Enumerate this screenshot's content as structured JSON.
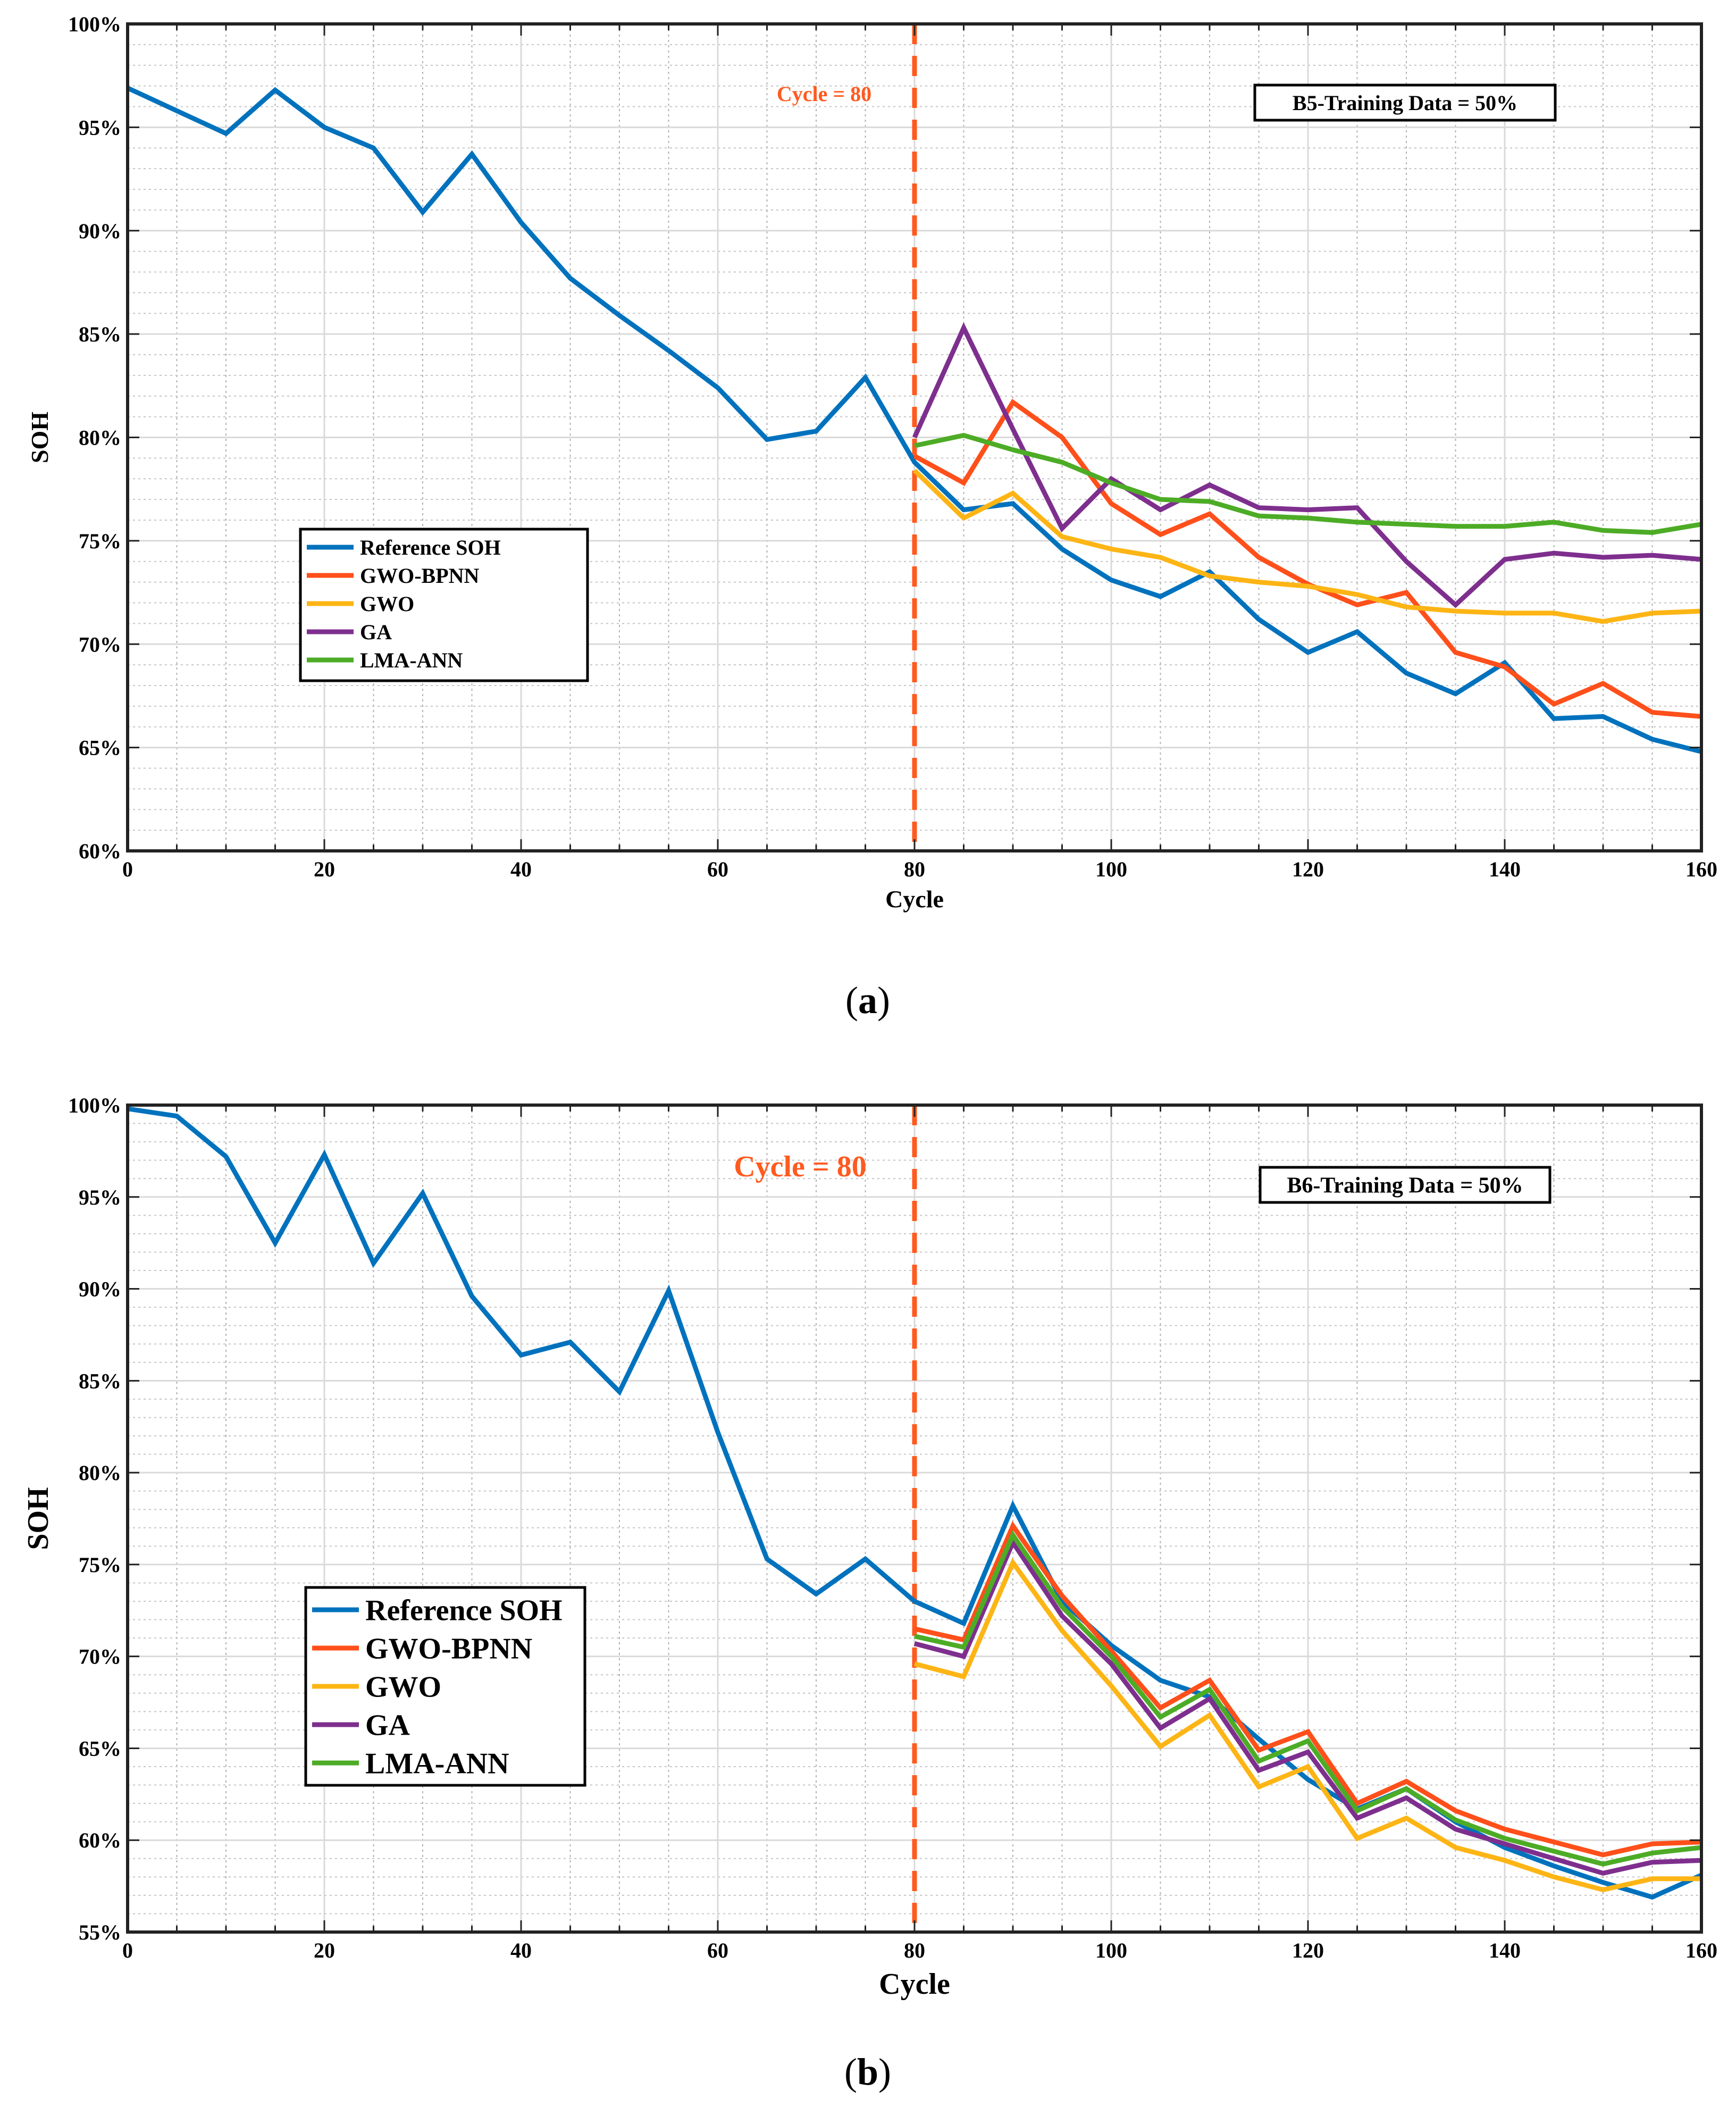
{
  "colors": {
    "reference": "#0072BD",
    "gwo_bpnn": "#FF4F1A",
    "gwo": "#FDB515",
    "ga": "#7E2F8E",
    "lma_ann": "#4DAC26",
    "marker_line": "#FF5A1F"
  },
  "chart_data": [
    {
      "type": "line",
      "panel_caption": "(a)",
      "caption_letter": "a",
      "xlabel": "Cycle",
      "ylabel": "SOH",
      "xlim": [
        0,
        160
      ],
      "ylim": [
        60,
        100
      ],
      "x_ticks": [
        "0",
        "20",
        "40",
        "60",
        "80",
        "100",
        "120",
        "140",
        "160"
      ],
      "y_ticks": [
        "60%",
        "65%",
        "70%",
        "75%",
        "80%",
        "85%",
        "90%",
        "95%",
        "100%"
      ],
      "grid": true,
      "legend_placement": "center-left",
      "annotation": "Cycle = 80",
      "vline_x": 80,
      "textbox": "B5-Training Data = 50%",
      "series": [
        {
          "name": "Reference SOH",
          "color_key": "reference",
          "x": [
            0,
            5,
            10,
            15,
            20,
            25,
            30,
            35,
            40,
            45,
            50,
            55,
            60,
            65,
            70,
            75,
            80,
            85,
            90,
            95,
            100,
            105,
            110,
            115,
            120,
            125,
            130,
            135,
            140,
            145,
            150,
            155,
            160
          ],
          "values": [
            96.9,
            95.8,
            94.7,
            96.8,
            95.0,
            94.0,
            90.9,
            93.7,
            90.4,
            87.7,
            85.9,
            84.2,
            82.4,
            79.9,
            80.3,
            82.9,
            78.8,
            76.5,
            76.8,
            74.6,
            73.1,
            72.3,
            73.5,
            71.2,
            69.6,
            70.6,
            68.6,
            67.6,
            69.1,
            66.4,
            66.5,
            65.4,
            64.8
          ]
        },
        {
          "name": "GWO-BPNN",
          "color_key": "gwo_bpnn",
          "x": [
            80,
            85,
            90,
            95,
            100,
            105,
            110,
            115,
            120,
            125,
            130,
            135,
            140,
            145,
            150,
            155,
            160
          ],
          "values": [
            79.1,
            77.8,
            81.7,
            80.0,
            76.8,
            75.3,
            76.3,
            74.2,
            72.9,
            71.9,
            72.5,
            69.6,
            68.9,
            67.1,
            68.1,
            66.7,
            66.5
          ]
        },
        {
          "name": "GWO",
          "color_key": "gwo",
          "x": [
            80,
            85,
            90,
            95,
            100,
            105,
            110,
            115,
            120,
            125,
            130,
            135,
            140,
            145,
            150,
            155,
            160
          ],
          "values": [
            78.4,
            76.1,
            77.3,
            75.2,
            74.6,
            74.2,
            73.3,
            73.0,
            72.8,
            72.4,
            71.8,
            71.6,
            71.5,
            71.5,
            71.1,
            71.5,
            71.6
          ]
        },
        {
          "name": "GA",
          "color_key": "ga",
          "x": [
            80,
            85,
            90,
            95,
            100,
            105,
            110,
            115,
            120,
            125,
            130,
            135,
            140,
            145,
            150,
            155,
            160
          ],
          "values": [
            80.0,
            85.3,
            80.4,
            75.6,
            78.0,
            76.5,
            77.7,
            76.6,
            76.5,
            76.6,
            74.0,
            71.9,
            74.1,
            74.4,
            74.2,
            74.3,
            74.1
          ]
        },
        {
          "name": "LMA-ANN",
          "color_key": "lma_ann",
          "x": [
            80,
            85,
            90,
            95,
            100,
            105,
            110,
            115,
            120,
            125,
            130,
            135,
            140,
            145,
            150,
            155,
            160
          ],
          "values": [
            79.6,
            80.1,
            79.4,
            78.8,
            77.8,
            77.0,
            76.9,
            76.2,
            76.1,
            75.9,
            75.8,
            75.7,
            75.7,
            75.9,
            75.5,
            75.4,
            75.8
          ]
        }
      ]
    },
    {
      "type": "line",
      "panel_caption": "(b)",
      "caption_letter": "b",
      "xlabel": "Cycle",
      "ylabel": "SOH",
      "xlim": [
        0,
        160
      ],
      "ylim": [
        55,
        100
      ],
      "x_ticks": [
        "0",
        "20",
        "40",
        "60",
        "80",
        "100",
        "120",
        "140",
        "160"
      ],
      "y_ticks": [
        "55%",
        "60%",
        "65%",
        "70%",
        "75%",
        "80%",
        "85%",
        "90%",
        "95%",
        "100%"
      ],
      "grid": true,
      "legend_placement": "lower-left",
      "annotation": "Cycle = 80",
      "vline_x": 80,
      "textbox": "B6-Training Data = 50%",
      "series": [
        {
          "name": "Reference SOH",
          "color_key": "reference",
          "x": [
            0,
            5,
            10,
            15,
            20,
            25,
            30,
            35,
            40,
            45,
            50,
            55,
            60,
            65,
            70,
            75,
            80,
            85,
            90,
            95,
            100,
            105,
            110,
            115,
            120,
            125,
            130,
            135,
            140,
            145,
            150,
            155,
            160
          ],
          "values": [
            99.8,
            99.4,
            97.2,
            92.5,
            97.3,
            91.4,
            95.2,
            89.6,
            86.4,
            87.1,
            84.4,
            89.9,
            82.2,
            75.3,
            73.4,
            75.3,
            73.0,
            71.8,
            78.2,
            73.0,
            70.6,
            68.7,
            67.8,
            65.5,
            63.3,
            61.7,
            62.8,
            61.0,
            59.6,
            58.6,
            57.7,
            56.9,
            58.1
          ]
        },
        {
          "name": "GWO-BPNN",
          "color_key": "gwo_bpnn",
          "x": [
            80,
            85,
            90,
            95,
            100,
            105,
            110,
            115,
            120,
            125,
            130,
            135,
            140,
            145,
            150,
            155,
            160
          ],
          "values": [
            71.5,
            70.9,
            77.1,
            73.3,
            70.3,
            67.2,
            68.7,
            64.9,
            65.9,
            62.0,
            63.2,
            61.6,
            60.6,
            59.9,
            59.2,
            59.8,
            59.9
          ]
        },
        {
          "name": "GWO",
          "color_key": "gwo",
          "x": [
            80,
            85,
            90,
            95,
            100,
            105,
            110,
            115,
            120,
            125,
            130,
            135,
            140,
            145,
            150,
            155,
            160
          ],
          "values": [
            69.6,
            68.9,
            75.1,
            71.4,
            68.4,
            65.1,
            66.8,
            62.9,
            64.0,
            60.1,
            61.2,
            59.6,
            58.9,
            58.0,
            57.3,
            57.9,
            57.9
          ]
        },
        {
          "name": "GA",
          "color_key": "ga",
          "x": [
            80,
            85,
            90,
            95,
            100,
            105,
            110,
            115,
            120,
            125,
            130,
            135,
            140,
            145,
            150,
            155,
            160
          ],
          "values": [
            70.7,
            70.0,
            76.2,
            72.2,
            69.6,
            66.1,
            67.7,
            63.8,
            64.8,
            61.2,
            62.3,
            60.6,
            59.8,
            59.0,
            58.2,
            58.8,
            58.9
          ]
        },
        {
          "name": "LMA-ANN",
          "color_key": "lma_ann",
          "x": [
            80,
            85,
            90,
            95,
            100,
            105,
            110,
            115,
            120,
            125,
            130,
            135,
            140,
            145,
            150,
            155,
            160
          ],
          "values": [
            71.1,
            70.5,
            76.6,
            72.7,
            70.0,
            66.7,
            68.2,
            64.3,
            65.4,
            61.6,
            62.8,
            61.1,
            60.1,
            59.4,
            58.7,
            59.3,
            59.6
          ]
        }
      ]
    }
  ]
}
